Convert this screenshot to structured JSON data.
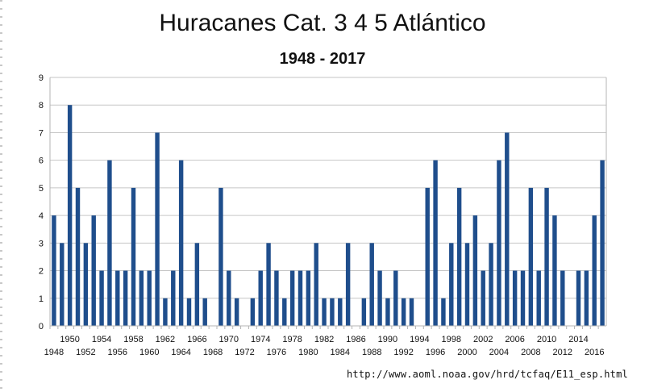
{
  "chart_data": {
    "type": "bar",
    "title": "Huracanes Cat. 3 4 5 Atlántico",
    "subtitle": "1948 - 2017",
    "x": [
      1948,
      1949,
      1950,
      1951,
      1952,
      1953,
      1954,
      1955,
      1956,
      1957,
      1958,
      1959,
      1960,
      1961,
      1962,
      1963,
      1964,
      1965,
      1966,
      1967,
      1968,
      1969,
      1970,
      1971,
      1972,
      1973,
      1974,
      1975,
      1976,
      1977,
      1978,
      1979,
      1980,
      1981,
      1982,
      1983,
      1984,
      1985,
      1986,
      1987,
      1988,
      1989,
      1990,
      1991,
      1992,
      1993,
      1994,
      1995,
      1996,
      1997,
      1998,
      1999,
      2000,
      2001,
      2002,
      2003,
      2004,
      2005,
      2006,
      2007,
      2008,
      2009,
      2010,
      2011,
      2012,
      2013,
      2014,
      2015,
      2016,
      2017
    ],
    "values": [
      4,
      3,
      8,
      5,
      3,
      4,
      2,
      6,
      2,
      2,
      5,
      2,
      2,
      7,
      1,
      2,
      6,
      1,
      3,
      1,
      0,
      5,
      2,
      1,
      0,
      1,
      2,
      3,
      2,
      1,
      2,
      2,
      2,
      3,
      1,
      1,
      1,
      3,
      0,
      1,
      3,
      2,
      1,
      2,
      1,
      1,
      0,
      5,
      6,
      1,
      3,
      5,
      3,
      4,
      2,
      3,
      6,
      7,
      2,
      2,
      5,
      2,
      5,
      4,
      2,
      0,
      2,
      2,
      4,
      6
    ],
    "x_tick_labels_lower": [
      "1948",
      "1952",
      "1956",
      "1960",
      "1964",
      "1968",
      "1972",
      "1976",
      "1980",
      "1984",
      "1988",
      "1992",
      "1996",
      "2000",
      "2004",
      "2008",
      "2012",
      "2016"
    ],
    "x_tick_labels_upper": [
      "1950",
      "1954",
      "1958",
      "1962",
      "1966",
      "1970",
      "1974",
      "1978",
      "1982",
      "1986",
      "1990",
      "1994",
      "1998",
      "2002",
      "2006",
      "2010",
      "2014"
    ],
    "ylim": [
      0,
      9
    ],
    "y_ticks": [
      "0",
      "1",
      "2",
      "3",
      "4",
      "5",
      "6",
      "7",
      "8",
      "9"
    ],
    "grid": true,
    "bar_color": "#1f4e8c",
    "xlabel": "",
    "ylabel": ""
  },
  "source": "http://www.aoml.noaa.gov/hrd/tcfaq/E11_esp.html"
}
